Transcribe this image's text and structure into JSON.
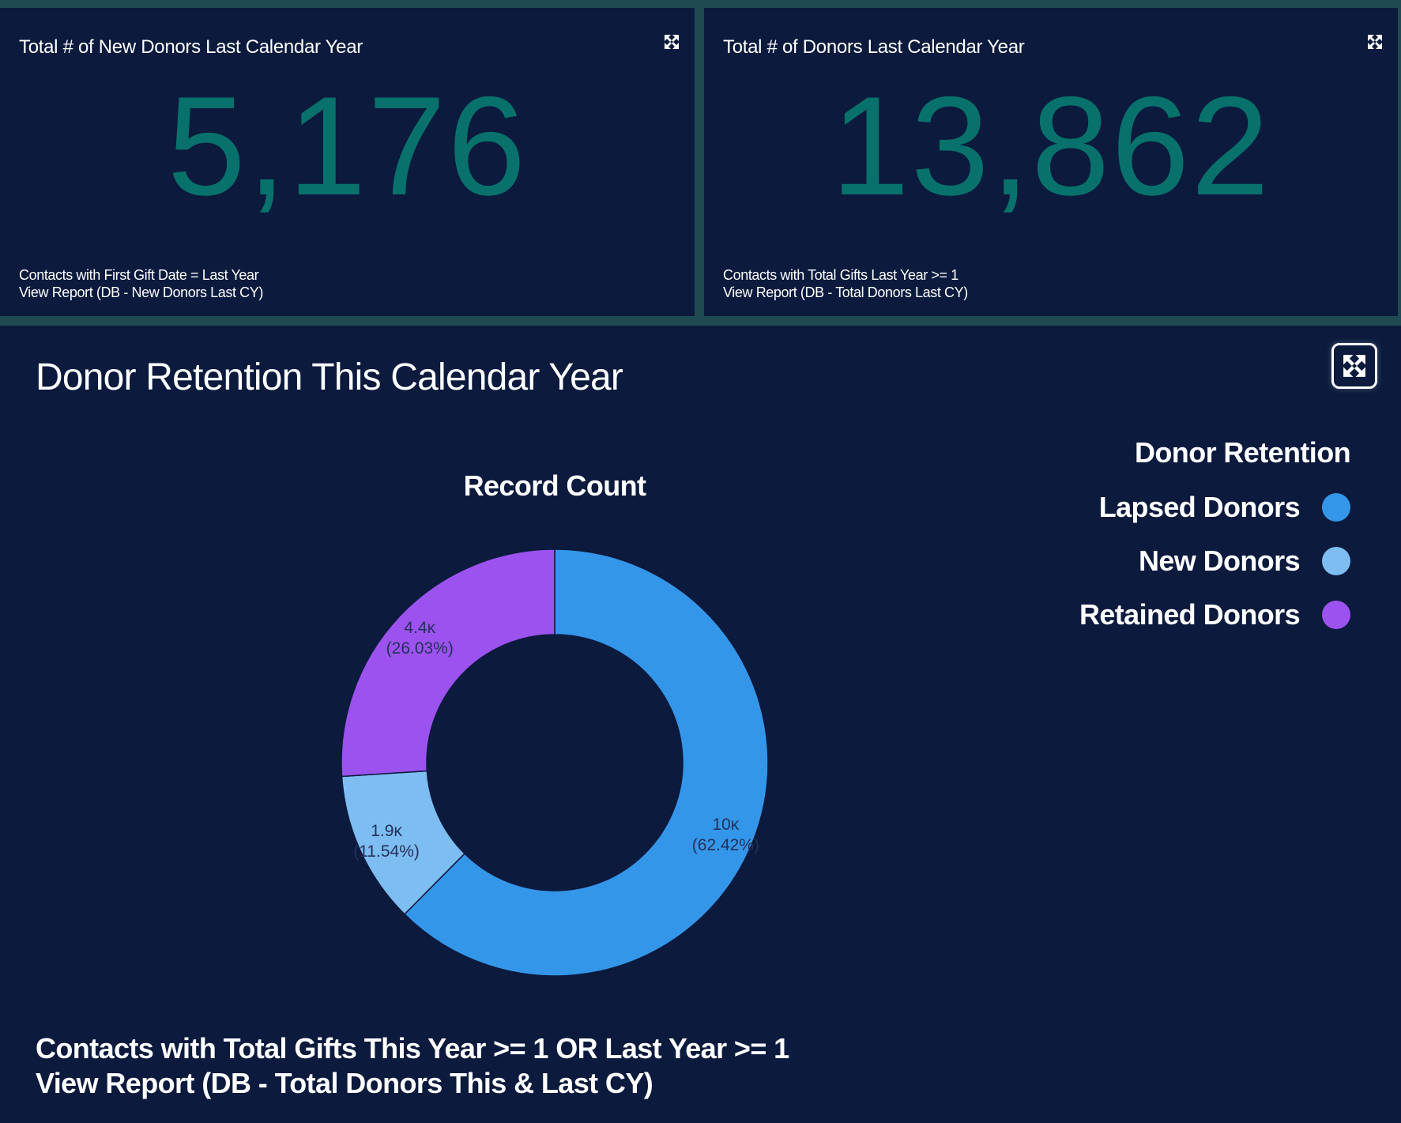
{
  "cards": [
    {
      "title": "Total # of New Donors Last Calendar Year",
      "value": "5,176",
      "footer_line1": "Contacts with First Gift Date = Last Year",
      "footer_line2": "View Report (DB - New Donors Last CY)"
    },
    {
      "title": "Total # of Donors Last Calendar Year",
      "value": "13,862",
      "footer_line1": "Contacts with Total Gifts Last Year >= 1",
      "footer_line2": "View Report (DB - Total Donors Last CY)"
    }
  ],
  "panel": {
    "title": "Donor Retention This Calendar Year",
    "footer_line1": "Contacts with Total Gifts This Year >= 1 OR Last Year >= 1",
    "footer_line2": "View Report (DB - Total Donors This & Last CY)"
  },
  "icons": {
    "card_expand": "expand-icon",
    "panel_expand": "expand-icon"
  },
  "chart_data": {
    "type": "pie",
    "subtype": "donut",
    "title": "Record Count",
    "legend_title": "Donor Retention",
    "legend_position": "right",
    "categories": [
      "Lapsed Donors",
      "New Donors",
      "Retained Donors"
    ],
    "values": [
      10000,
      1900,
      4400
    ],
    "percentages": [
      62.42,
      11.54,
      26.03
    ],
    "data_labels": [
      {
        "value": "10κ",
        "percent": "(62.42%)"
      },
      {
        "value": "1.9κ",
        "percent": "(11.54%)"
      },
      {
        "value": "4.4κ",
        "percent": "(26.03%)"
      }
    ],
    "colors": [
      "#3496e8",
      "#7dbdf2",
      "#9c52ee"
    ]
  }
}
